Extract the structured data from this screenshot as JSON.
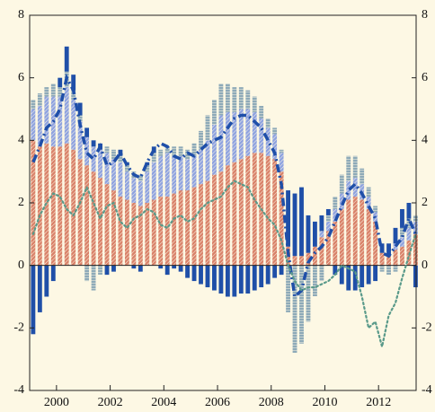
{
  "chart_data": {
    "type": "stacked-bar-line",
    "x": [
      1999,
      1999.25,
      1999.5,
      1999.75,
      2000,
      2000.25,
      2000.5,
      2000.75,
      2001,
      2001.25,
      2001.5,
      2001.75,
      2002,
      2002.25,
      2002.5,
      2002.75,
      2003,
      2003.25,
      2003.5,
      2003.75,
      2004,
      2004.25,
      2004.5,
      2004.75,
      2005,
      2005.25,
      2005.5,
      2005.75,
      2006,
      2006.25,
      2006.5,
      2006.75,
      2007,
      2007.25,
      2007.5,
      2007.75,
      2008,
      2008.25,
      2008.5,
      2008.75,
      2009,
      2009.25,
      2009.5,
      2009.75,
      2010,
      2010.25,
      2010.5,
      2010.75,
      2011,
      2011.25,
      2011.5,
      2011.75,
      2012,
      2012.25,
      2012.5,
      2012.75,
      2013,
      2013.25
    ],
    "series": [
      {
        "color": "#d9826a",
        "values": [
          4.0,
          3.8,
          3.9,
          3.8,
          3.8,
          3.9,
          3.7,
          3.4,
          3.2,
          3.0,
          2.8,
          2.6,
          2.4,
          2.2,
          2.1,
          2.0,
          1.9,
          2.0,
          2.1,
          2.2,
          2.2,
          2.3,
          2.4,
          2.4,
          2.5,
          2.6,
          2.7,
          2.9,
          3.0,
          3.2,
          3.3,
          3.4,
          3.5,
          3.6,
          3.6,
          3.5,
          3.4,
          3.0,
          0.6,
          0.3,
          0.3,
          0.4,
          0.6,
          0.9,
          1.1,
          1.4,
          1.8,
          2.1,
          2.2,
          2.1,
          1.8,
          1.4,
          0.4,
          0.3,
          0.5,
          0.6,
          0.8,
          1.0
        ]
      },
      {
        "color": "#8fa3e0",
        "values": [
          1.0,
          1.3,
          1.5,
          1.6,
          1.6,
          1.8,
          1.6,
          1.2,
          0.9,
          0.8,
          0.9,
          1.0,
          1.0,
          1.1,
          0.9,
          0.8,
          0.8,
          1.0,
          1.2,
          1.3,
          1.4,
          1.2,
          1.1,
          1.0,
          1.0,
          1.1,
          1.3,
          1.6,
          1.8,
          1.7,
          1.6,
          1.6,
          1.5,
          1.3,
          1.1,
          0.9,
          0.8,
          0.6,
          0,
          0,
          0,
          0,
          0,
          0.2,
          0.3,
          0.4,
          0.5,
          0.6,
          0.6,
          0.5,
          0.4,
          0.3,
          0,
          0,
          0.2,
          0.3,
          0.4,
          0.4
        ]
      },
      {
        "color": "#8eaab8",
        "values": [
          0.3,
          0.4,
          0.3,
          0.4,
          0.3,
          0.5,
          0.3,
          0.2,
          -0.5,
          -0.8,
          -0.3,
          0.2,
          0.3,
          0.2,
          0.2,
          0.2,
          0.2,
          0.2,
          0.3,
          0.2,
          0.2,
          0.3,
          0.3,
          0.3,
          0.4,
          0.6,
          0.8,
          0.8,
          1.0,
          0.9,
          0.8,
          0.7,
          0.6,
          0.5,
          0.4,
          0.3,
          0.2,
          0.1,
          -1.5,
          -2.8,
          -2.5,
          -1.8,
          -1.0,
          -0.5,
          0.2,
          0.4,
          0.6,
          0.8,
          0.7,
          0.5,
          0.3,
          0.2,
          -0.2,
          -0.3,
          -0.2,
          0.3,
          0.3,
          0.2
        ]
      },
      {
        "color": "#1f4fa8",
        "values": [
          -2.2,
          -1.5,
          -1.0,
          -0.5,
          0.3,
          0.8,
          0.5,
          0.4,
          0.3,
          0.2,
          0.2,
          -0.3,
          -0.2,
          0.2,
          0.1,
          -0.1,
          -0.2,
          0.1,
          0.2,
          -0.1,
          -0.3,
          -0.1,
          -0.2,
          -0.4,
          -0.5,
          -0.6,
          -0.7,
          -0.8,
          -0.9,
          -1.0,
          -1.0,
          -0.9,
          -0.9,
          -0.8,
          -0.7,
          -0.6,
          -0.4,
          -0.3,
          1.8,
          2.0,
          2.2,
          1.2,
          0.8,
          0.5,
          0.2,
          -0.3,
          -0.6,
          -0.8,
          -0.8,
          -0.7,
          -0.6,
          -0.5,
          0.3,
          0.4,
          0.5,
          0.6,
          0.5,
          -0.7
        ]
      }
    ],
    "lines": [
      {
        "color": "#1f4fa8",
        "style": "dashed",
        "values": [
          3.3,
          3.8,
          4.4,
          4.6,
          5.0,
          6.0,
          5.6,
          4.5,
          3.6,
          3.4,
          3.8,
          3.2,
          3.3,
          3.6,
          3.2,
          2.9,
          2.8,
          3.3,
          3.7,
          3.9,
          3.8,
          3.5,
          3.4,
          3.6,
          3.5,
          3.7,
          3.9,
          4.0,
          4.1,
          4.4,
          4.7,
          4.8,
          4.8,
          4.6,
          4.4,
          4.0,
          3.6,
          2.6,
          0.4,
          -1.0,
          -0.8,
          0.1,
          0.4,
          0.6,
          0.9,
          1.4,
          1.9,
          2.4,
          2.6,
          2.3,
          1.9,
          1.5,
          0.4,
          0.3,
          0.6,
          0.9,
          1.5,
          1.0
        ]
      },
      {
        "color": "#5a9a8a",
        "style": "dotted",
        "values": [
          1.0,
          1.6,
          2.0,
          2.3,
          2.2,
          1.8,
          1.6,
          2.0,
          2.5,
          2.0,
          1.5,
          1.9,
          2.0,
          1.4,
          1.2,
          1.5,
          1.6,
          1.8,
          1.7,
          1.3,
          1.2,
          1.5,
          1.6,
          1.4,
          1.5,
          1.8,
          2.0,
          2.1,
          2.2,
          2.5,
          2.7,
          2.6,
          2.5,
          2.1,
          1.8,
          1.5,
          1.3,
          0.8,
          0.0,
          -0.5,
          -0.8,
          -0.7,
          -0.7,
          -0.6,
          -0.5,
          -0.3,
          0.0,
          -0.1,
          -0.2,
          -1.0,
          -2.0,
          -1.8,
          -2.6,
          -1.6,
          -1.2,
          -0.4,
          0.3,
          1.0
        ]
      }
    ],
    "xlim": [
      1999,
      2013.4
    ],
    "xticks": [
      2000,
      2002,
      2004,
      2006,
      2008,
      2010,
      2012
    ],
    "ylim": [
      -4,
      8
    ],
    "yticks": [
      -4,
      -2,
      0,
      2,
      4,
      6,
      8
    ],
    "y2lim": [
      -4,
      8
    ],
    "y2ticks": [
      -4,
      -2,
      0,
      2,
      4,
      6,
      8
    ]
  }
}
